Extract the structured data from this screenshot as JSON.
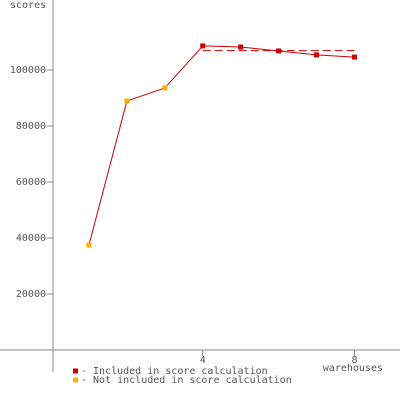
{
  "chart_data": {
    "type": "line",
    "y_label": "scores",
    "x_label": "warehouses",
    "x": [
      1,
      2,
      3,
      4,
      5,
      6,
      7,
      8
    ],
    "line_color": "#cc0000",
    "series": [
      {
        "name": "- Included in score calculation",
        "color": "#cc0000",
        "values": [
          null,
          null,
          null,
          108600,
          108200,
          106800,
          105400,
          104600
        ]
      },
      {
        "name": "- Not included in score calculation",
        "color": "#ffb000",
        "values": [
          37500,
          88900,
          93600,
          null,
          null,
          null,
          null,
          null
        ]
      }
    ],
    "score_line": {
      "value": 106900,
      "from": 4,
      "to": 8
    },
    "xlim": [
      0,
      9.2
    ],
    "ylim": [
      0,
      125000
    ],
    "xticks": [
      4,
      8
    ],
    "yticks": [
      20000,
      40000,
      60000,
      80000,
      100000
    ]
  }
}
